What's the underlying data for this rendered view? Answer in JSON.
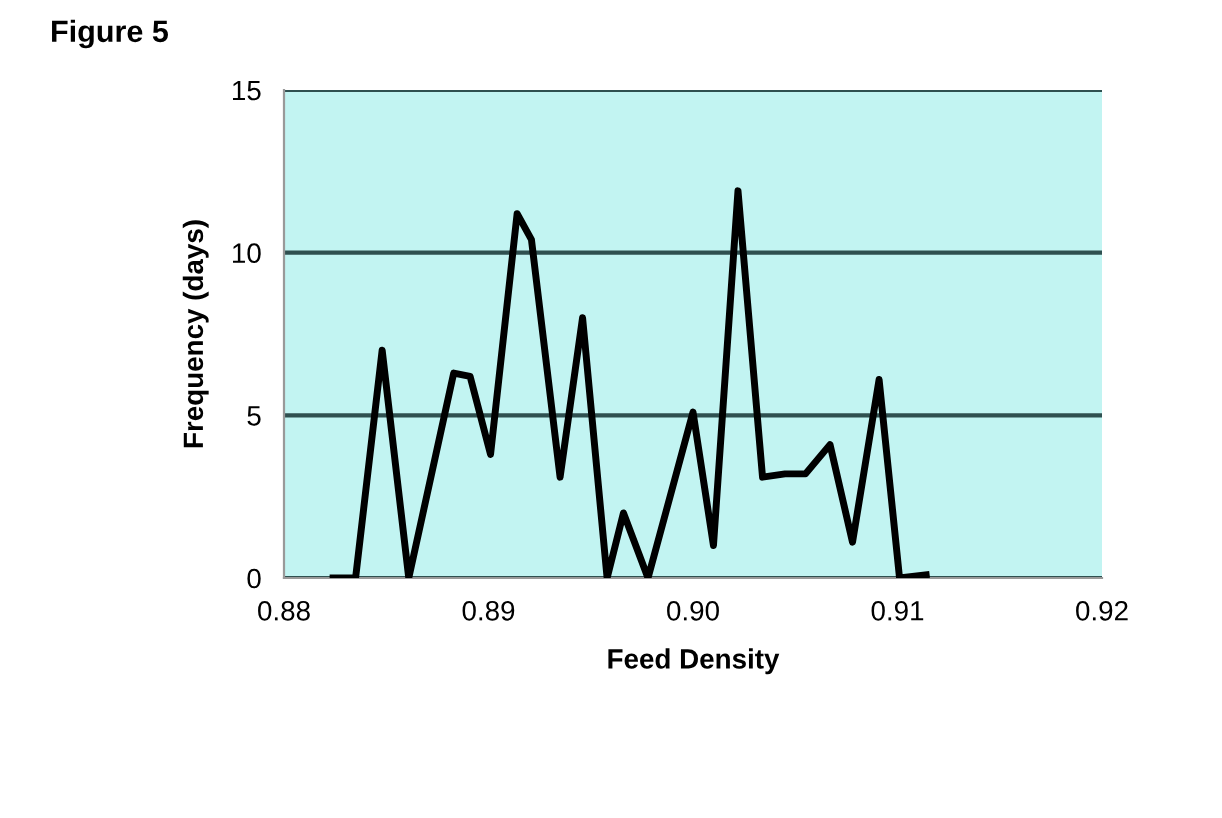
{
  "chart_data": {
    "type": "line",
    "title": "Figure 5",
    "xlabel": "Feed Density",
    "ylabel": "Frequency (days)",
    "series": [
      {
        "color": "#000000",
        "x": [
          0.8824,
          0.8835,
          0.8848,
          0.8861,
          0.8883,
          0.8891,
          0.8901,
          0.8914,
          0.8921,
          0.8935,
          0.8946,
          0.8958,
          0.8966,
          0.8978,
          0.9,
          0.901,
          0.9022,
          0.9034,
          0.9045,
          0.9055,
          0.9067,
          0.9078,
          0.9091,
          0.9101,
          0.9114
        ],
        "values": [
          0,
          0,
          7,
          0,
          6.3,
          6.2,
          3.8,
          11.2,
          10.4,
          3.1,
          8,
          0,
          2,
          0,
          5.1,
          1,
          11.9,
          3.1,
          3.2,
          3.2,
          4.1,
          1.1,
          6.1,
          0,
          0.1
        ]
      }
    ],
    "xlim": [
      0.88,
      0.92
    ],
    "xticks": [
      {
        "value": 0.88,
        "label": "0.88"
      },
      {
        "value": 0.89,
        "label": "0.89"
      },
      {
        "value": 0.9,
        "label": "0.90"
      },
      {
        "value": 0.91,
        "label": "0.91"
      },
      {
        "value": 0.92,
        "label": "0.92"
      }
    ],
    "ylim": [
      0,
      15
    ],
    "yticks": [
      0,
      5,
      10,
      15
    ],
    "grid": "y",
    "legend": false,
    "marker": "none",
    "line_style": "solid"
  }
}
